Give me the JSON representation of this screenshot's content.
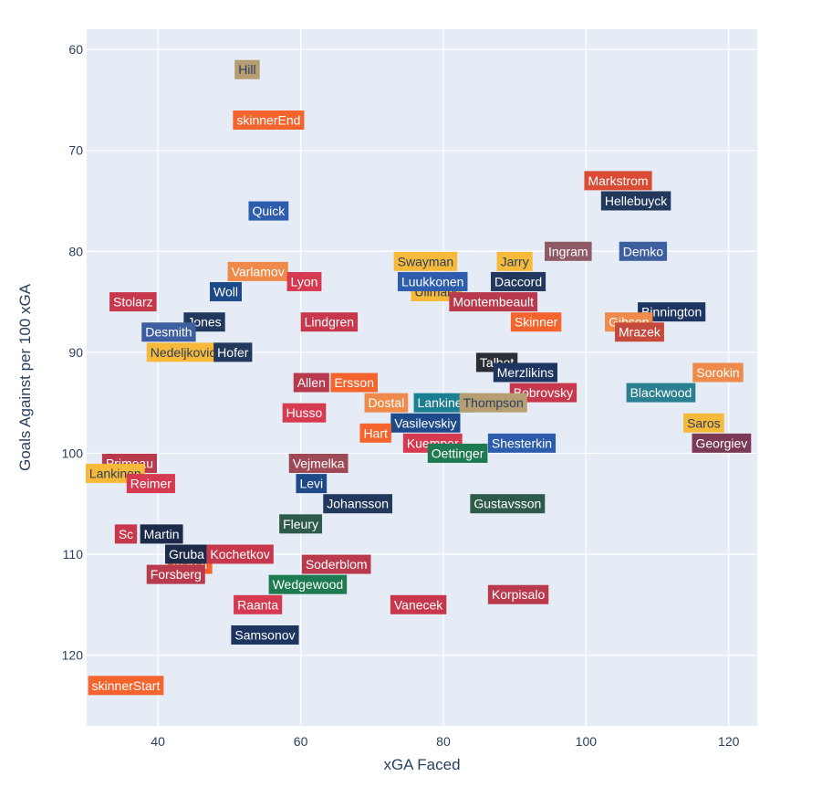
{
  "chart_data": {
    "type": "scatter",
    "title": "",
    "xlabel": "xGA Faced",
    "ylabel": "Goals Against per 100 xGA",
    "xlim": [
      30,
      124
    ],
    "ylim": [
      127,
      58
    ],
    "y_reversed": true,
    "x_ticks": [
      40,
      60,
      80,
      100,
      120
    ],
    "y_ticks": [
      60,
      70,
      80,
      90,
      100,
      110,
      120
    ],
    "grid": true,
    "legend": "none",
    "background": "#e5ecf6",
    "points": [
      {
        "label": "Hill",
        "x": 52.5,
        "y": 62,
        "color": "#b69e72",
        "text_color": "#2a3f5f"
      },
      {
        "label": "skinnerEnd",
        "x": 55.5,
        "y": 67,
        "color": "#f4642c",
        "text_color": "#ffffff"
      },
      {
        "label": "Markstrom",
        "x": 104.5,
        "y": 73,
        "color": "#db4a32",
        "text_color": "#ffffff"
      },
      {
        "label": "Hellebuyck",
        "x": 107,
        "y": 75,
        "color": "#22385c",
        "text_color": "#ffffff"
      },
      {
        "label": "Quick",
        "x": 55.5,
        "y": 76,
        "color": "#2d5dac",
        "text_color": "#ffffff"
      },
      {
        "label": "Demko",
        "x": 108,
        "y": 80,
        "color": "#3e5f9f",
        "text_color": "#ffffff"
      },
      {
        "label": "Ingram",
        "x": 97.5,
        "y": 80,
        "color": "#8e5a66",
        "text_color": "#ffffff"
      },
      {
        "label": "Jarry",
        "x": 90,
        "y": 81,
        "color": "#f6b93a",
        "text_color": "#2a3f5f"
      },
      {
        "label": "Swayman",
        "x": 77.5,
        "y": 81,
        "color": "#f6b93a",
        "text_color": "#2a3f5f"
      },
      {
        "label": "Varlamov",
        "x": 54,
        "y": 82,
        "color": "#ef8a4a",
        "text_color": "#ffffff"
      },
      {
        "label": "Lyon",
        "x": 60.5,
        "y": 83,
        "color": "#d63a50",
        "text_color": "#ffffff"
      },
      {
        "label": "Ullmark",
        "x": 79,
        "y": 84,
        "color": "#f6b93a",
        "text_color": "#2a3f5f"
      },
      {
        "label": "Luukkonen",
        "x": 78.5,
        "y": 83,
        "color": "#2d5dac",
        "text_color": "#ffffff"
      },
      {
        "label": "Daccord",
        "x": 90.5,
        "y": 83,
        "color": "#22385c",
        "text_color": "#ffffff"
      },
      {
        "label": "Woll",
        "x": 49.5,
        "y": 84,
        "color": "#1f4a8a",
        "text_color": "#ffffff"
      },
      {
        "label": "Stolarz",
        "x": 36.5,
        "y": 85,
        "color": "#c8384c",
        "text_color": "#ffffff"
      },
      {
        "label": "Montembeault",
        "x": 87,
        "y": 85,
        "color": "#b83a4c",
        "text_color": "#ffffff"
      },
      {
        "label": "Binnington",
        "x": 112,
        "y": 86,
        "color": "#1d3560",
        "text_color": "#ffffff"
      },
      {
        "label": "Gibson",
        "x": 106,
        "y": 87,
        "color": "#ef8a4a",
        "text_color": "#ffffff"
      },
      {
        "label": "Jones",
        "x": 46.5,
        "y": 87,
        "color": "#22385c",
        "text_color": "#ffffff"
      },
      {
        "label": "Lindgren",
        "x": 64,
        "y": 87,
        "color": "#c8384c",
        "text_color": "#ffffff"
      },
      {
        "label": "Skinner",
        "x": 93,
        "y": 87,
        "color": "#f4642c",
        "text_color": "#ffffff"
      },
      {
        "label": "Desmith",
        "x": 41.5,
        "y": 88,
        "color": "#3e5f9f",
        "text_color": "#ffffff"
      },
      {
        "label": "Mrazek",
        "x": 107.5,
        "y": 88,
        "color": "#c64a3c",
        "text_color": "#ffffff"
      },
      {
        "label": "Nedeljkovic",
        "x": 43.5,
        "y": 90,
        "color": "#f6b93a",
        "text_color": "#2a3f5f"
      },
      {
        "label": "Hofer",
        "x": 50.5,
        "y": 90,
        "color": "#22385c",
        "text_color": "#ffffff"
      },
      {
        "label": "Talbot",
        "x": 87.5,
        "y": 91,
        "color": "#2a2d33",
        "text_color": "#ffffff"
      },
      {
        "label": "Merzlikins",
        "x": 91.5,
        "y": 92,
        "color": "#1d3560",
        "text_color": "#ffffff"
      },
      {
        "label": "Sorokin",
        "x": 118.5,
        "y": 92,
        "color": "#ef8a4a",
        "text_color": "#ffffff"
      },
      {
        "label": "Allen",
        "x": 61.5,
        "y": 93,
        "color": "#b83a4c",
        "text_color": "#ffffff"
      },
      {
        "label": "Ersson",
        "x": 67.5,
        "y": 93,
        "color": "#f4642c",
        "text_color": "#ffffff"
      },
      {
        "label": "Blackwood",
        "x": 110.5,
        "y": 94,
        "color": "#2a8090",
        "text_color": "#ffffff"
      },
      {
        "label": "Bobrovsky",
        "x": 94,
        "y": 94,
        "color": "#c8384c",
        "text_color": "#ffffff"
      },
      {
        "label": "Dostal",
        "x": 72,
        "y": 95,
        "color": "#ef8a4a",
        "text_color": "#ffffff"
      },
      {
        "label": "Vasilevskiy",
        "x": 77.5,
        "y": 97,
        "color": "#1f4a8a",
        "text_color": "#ffffff"
      },
      {
        "label": "Lankinen",
        "x": 80,
        "y": 95,
        "color": "#1a7f92",
        "text_color": "#ffffff"
      },
      {
        "label": "Thompson",
        "x": 87,
        "y": 95,
        "color": "#b69e72",
        "text_color": "#2a3f5f"
      },
      {
        "label": "Husso",
        "x": 60.5,
        "y": 96,
        "color": "#d63a50",
        "text_color": "#ffffff"
      },
      {
        "label": "Saros",
        "x": 116.5,
        "y": 97,
        "color": "#f6b93a",
        "text_color": "#2a3f5f"
      },
      {
        "label": "Hart",
        "x": 70.5,
        "y": 98,
        "color": "#f4642c",
        "text_color": "#ffffff"
      },
      {
        "label": "Kuemper",
        "x": 78.5,
        "y": 99,
        "color": "#d63a50",
        "text_color": "#ffffff"
      },
      {
        "label": "Shesterkin",
        "x": 91,
        "y": 99,
        "color": "#2d5dac",
        "text_color": "#ffffff"
      },
      {
        "label": "Georgiev",
        "x": 119,
        "y": 99,
        "color": "#7a3a55",
        "text_color": "#ffffff"
      },
      {
        "label": "Oettinger",
        "x": 82,
        "y": 100,
        "color": "#1e7a50",
        "text_color": "#ffffff"
      },
      {
        "label": "Primeau",
        "x": 36,
        "y": 101,
        "color": "#b83a4c",
        "text_color": "#ffffff"
      },
      {
        "label": "Vejmelka",
        "x": 62.5,
        "y": 101,
        "color": "#9e4a56",
        "text_color": "#ffffff"
      },
      {
        "label": "Lankinen",
        "x": 34,
        "y": 102,
        "color": "#f6b93a",
        "text_color": "#2a3f5f"
      },
      {
        "label": "Reimer",
        "x": 39,
        "y": 103,
        "color": "#d63a50",
        "text_color": "#ffffff"
      },
      {
        "label": "Levi",
        "x": 61.5,
        "y": 103,
        "color": "#1f4a8a",
        "text_color": "#ffffff"
      },
      {
        "label": "Johansson",
        "x": 68,
        "y": 105,
        "color": "#22385c",
        "text_color": "#ffffff"
      },
      {
        "label": "Gustavsson",
        "x": 89,
        "y": 105,
        "color": "#2e5a4a",
        "text_color": "#ffffff"
      },
      {
        "label": "Fleury",
        "x": 60,
        "y": 107,
        "color": "#2e5a4a",
        "text_color": "#ffffff"
      },
      {
        "label": "Sc",
        "x": 35.5,
        "y": 108,
        "color": "#c8384c",
        "text_color": "#ffffff"
      },
      {
        "label": "Martin",
        "x": 40.5,
        "y": 108,
        "color": "#1d2a4a",
        "text_color": "#ffffff"
      },
      {
        "label": "Vladar",
        "x": 44.5,
        "y": 111,
        "color": "#f4642c",
        "text_color": "#ffffff"
      },
      {
        "label": "Forsberg",
        "x": 42.5,
        "y": 112,
        "color": "#b83a4c",
        "text_color": "#ffffff"
      },
      {
        "label": "Gruba",
        "x": 44,
        "y": 110,
        "color": "#1d2a4a",
        "text_color": "#ffffff"
      },
      {
        "label": "Kochetkov",
        "x": 51.5,
        "y": 110,
        "color": "#c8384c",
        "text_color": "#ffffff"
      },
      {
        "label": "Soderblom",
        "x": 65,
        "y": 111,
        "color": "#b83a4c",
        "text_color": "#ffffff"
      },
      {
        "label": "Wedgewood",
        "x": 61,
        "y": 113,
        "color": "#1e7a50",
        "text_color": "#ffffff"
      },
      {
        "label": "Korpisalo",
        "x": 90.5,
        "y": 114,
        "color": "#b83a4c",
        "text_color": "#ffffff"
      },
      {
        "label": "Raanta",
        "x": 54,
        "y": 115,
        "color": "#d63a50",
        "text_color": "#ffffff"
      },
      {
        "label": "Vanecek",
        "x": 76.5,
        "y": 115,
        "color": "#c8384c",
        "text_color": "#ffffff"
      },
      {
        "label": "Samsonov",
        "x": 55,
        "y": 118,
        "color": "#1d3560",
        "text_color": "#ffffff"
      },
      {
        "label": "skinnerStart",
        "x": 35.5,
        "y": 123,
        "color": "#f4642c",
        "text_color": "#ffffff"
      }
    ]
  }
}
